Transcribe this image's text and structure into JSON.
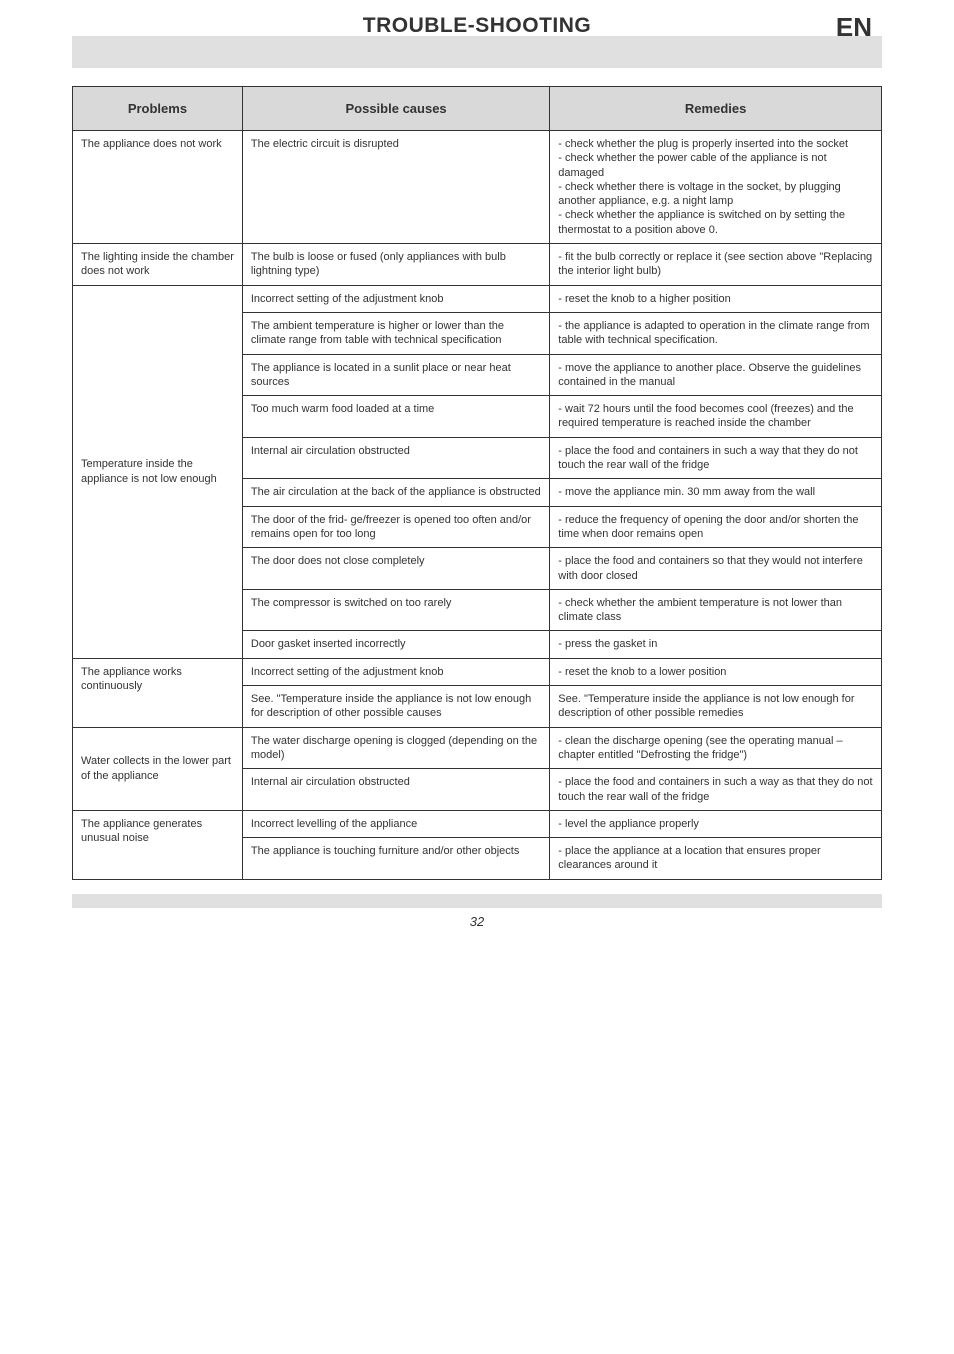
{
  "header": {
    "title": "TROUBLE-SHOOTING",
    "lang": "EN"
  },
  "table": {
    "columns": [
      "Problems",
      "Possible causes",
      "Remedies"
    ],
    "col_widths": [
      "21%",
      "38%",
      "41%"
    ],
    "header_bg": "#d9d9d9",
    "border_color": "#333333",
    "font_size_header": 13,
    "font_size_cell": 11,
    "groups": [
      {
        "problem": "The appliance does not work",
        "rows": [
          [
            "The electric circuit is disrupted",
            "- check whether the plug is properly inserted into the socket\n- check whether the power cable of the appliance is not damaged\n- check whether there is voltage in the socket, by plugging another appliance, e.g. a night lamp\n- check whether the appliance is switched on by setting the thermostat to a position above 0."
          ]
        ]
      },
      {
        "problem": "The lighting inside the chamber does not work",
        "rows": [
          [
            "The bulb is loose or fused (only appliances with bulb lightning type)",
            "- fit the bulb correctly or replace it (see section above \"Replacing the interior light bulb)"
          ]
        ]
      },
      {
        "problem": "Temperature inside the appliance is not low enough",
        "rows": [
          [
            "Incorrect setting of the adjustment knob",
            "- reset the knob to a higher position"
          ],
          [
            "The ambient temperature is higher or lower than the climate range from table with technical specification",
            "- the appliance is adapted to operation in the climate range from table with technical specification."
          ],
          [
            "The appliance is located in a sunlit place or near heat sources",
            "- move the appliance to another place. Observe the guidelines contained in the manual"
          ],
          [
            "Too much warm food loaded at a time",
            "- wait 72 hours until the food becomes cool (freezes) and the required temperature is reached inside the chamber"
          ],
          [
            "Internal air circulation obstructed",
            "- place the food and containers in such a way that they do not touch the rear wall of the fridge"
          ],
          [
            "The air circulation at the back of the appliance is obstructed",
            "- move the appliance min. 30 mm away from the wall"
          ],
          [
            "The door of the frid- ge/freezer is opened too often and/or remains open for too long",
            "- reduce the frequency of opening the door and/or shorten the time when door remains open"
          ],
          [
            "The door does not close completely",
            "- place the food and containers so that they would not interfere with door closed"
          ],
          [
            "The compressor is switched on too rarely",
            "- check whether the ambient temperature is not lower than climate class"
          ],
          [
            "Door gasket inserted incorrectly",
            "- press the gasket in"
          ]
        ]
      },
      {
        "problem": "The appliance works continuously",
        "rows": [
          [
            "Incorrect setting of the adjustment knob",
            "- reset the knob to a lower position"
          ],
          [
            "See. \"Temperature inside the appliance is not low enough for description of other possible causes",
            "See. \"Temperature inside the appliance is not low enough for description of other possible remedies"
          ]
        ]
      },
      {
        "problem": "Water collects in the lower part of the appliance",
        "rows": [
          [
            "The water discharge opening is clogged (depending on the model)",
            "- clean the discharge opening (see the operating manual – chapter entitled \"Defrosting the fridge\")"
          ],
          [
            "Internal air circulation obstructed",
            "- place the food and containers in such a way as that they do not touch the rear wall of the fridge"
          ]
        ]
      },
      {
        "problem": "The appliance generates unusual noise",
        "rows": [
          [
            "Incorrect levelling of the appliance",
            "- level the appliance properly"
          ],
          [
            "The appliance is touching furniture and/or other objects",
            "- place the appliance at a location that ensures proper clearances around it"
          ]
        ]
      }
    ]
  },
  "page_number": "32",
  "colors": {
    "bar_bg": "#e0e0e0",
    "text": "#333333",
    "page_bg": "#ffffff"
  }
}
